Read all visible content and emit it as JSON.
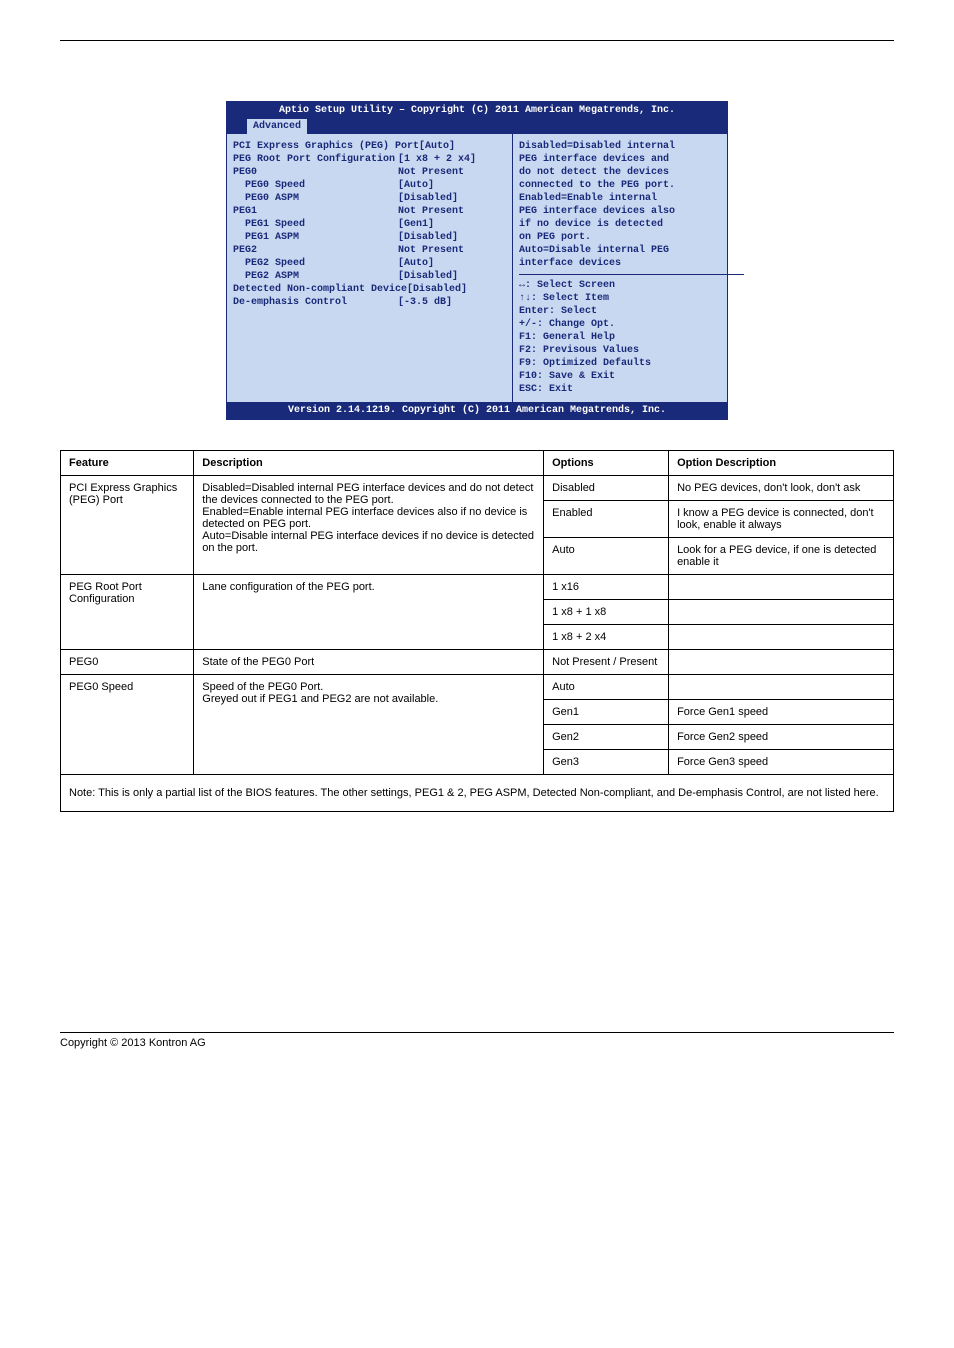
{
  "page_header_rule": true,
  "bios": {
    "title": "Aptio Setup Utility – Copyright (C) 2011 American Megatrends, Inc.",
    "tab": "Advanced",
    "left_rows": [
      {
        "label": "PCI Express Graphics (PEG) Port",
        "value": "[Auto]",
        "indent": 0
      },
      {
        "label": "PEG Root Port Configuration",
        "value": "[1 x8 + 2 x4]",
        "indent": 0
      },
      {
        "label": "PEG0",
        "value": "Not Present",
        "indent": 0
      },
      {
        "label": "PEG0 Speed",
        "value": "[Auto]",
        "indent": 1
      },
      {
        "label": "PEG0 ASPM",
        "value": "[Disabled]",
        "indent": 1
      },
      {
        "label": "PEG1",
        "value": "Not Present",
        "indent": 0
      },
      {
        "label": "PEG1 Speed",
        "value": "[Gen1]",
        "indent": 1
      },
      {
        "label": "PEG1 ASPM",
        "value": "[Disabled]",
        "indent": 1
      },
      {
        "label": "PEG2",
        "value": "Not Present",
        "indent": 0
      },
      {
        "label": "PEG2 Speed",
        "value": "[Auto]",
        "indent": 1
      },
      {
        "label": "PEG2 ASPM",
        "value": "[Disabled]",
        "indent": 1
      },
      {
        "label": "",
        "value": "",
        "indent": 0
      },
      {
        "label": "Detected Non-compliant Device",
        "value": "[Disabled]",
        "indent": 0
      },
      {
        "label": "De-emphasis Control",
        "value": "[-3.5 dB]",
        "indent": 0
      }
    ],
    "help_text": [
      "Disabled=Disabled internal",
      "PEG interface devices and",
      "do not detect the devices",
      "connected to the PEG port.",
      "Enabled=Enable internal",
      "PEG interface devices also",
      "if no device is detected",
      "on PEG port.",
      "Auto=Disable internal PEG",
      "interface devices"
    ],
    "nav_hints": [
      "↔: Select Screen",
      "↑↓: Select Item",
      "Enter: Select",
      "+/-: Change Opt.",
      "F1: General Help",
      "F2: Previsous Values",
      "F9: Optimized Defaults",
      "F10: Save & Exit",
      "ESC: Exit"
    ],
    "footer": "Version 2.14.1219. Copyright (C) 2011 American Megatrends, Inc."
  },
  "table": {
    "headers": [
      "Feature",
      "Description",
      "Options",
      "Option Description"
    ],
    "rows": [
      {
        "feature": "PCI Express Graphics (PEG) Port",
        "description": "Disabled=Disabled internal PEG interface devices and do not detect the devices connected to the PEG port.\nEnabled=Enable internal PEG interface devices also if no device is detected on PEG port.\nAuto=Disable internal PEG interface devices if no device is detected on the port.",
        "opts": [
          {
            "option": "Disabled",
            "odesc": "No PEG devices, don't look, don't ask"
          },
          {
            "option": "Enabled",
            "odesc": "I know a PEG device is connected, don't look, enable it always"
          },
          {
            "option": "Auto",
            "odesc": "Look for a PEG device, if one is detected enable it"
          }
        ]
      },
      {
        "feature": "PEG Root Port Configuration",
        "description": "Lane configuration of the PEG port.",
        "opts": [
          {
            "option": "1 x16",
            "odesc": ""
          },
          {
            "option": "1 x8 + 1 x8",
            "odesc": ""
          },
          {
            "option": "1 x8 + 2 x4",
            "odesc": ""
          }
        ]
      },
      {
        "feature": "PEG0",
        "description": "State of the PEG0 Port",
        "opts": [
          {
            "option": "Not Present / Present",
            "odesc": ""
          }
        ]
      },
      {
        "feature": "PEG0 Speed",
        "description": "Speed of the PEG0 Port.\nGreyed out if PEG1 and PEG2 are not available.",
        "opts": [
          {
            "option": "Auto",
            "odesc": ""
          },
          {
            "option": "Gen1",
            "odesc": "Force Gen1 speed"
          },
          {
            "option": "Gen2",
            "odesc": "Force Gen2 speed"
          },
          {
            "option": "Gen3",
            "odesc": "Force Gen3 speed"
          }
        ]
      }
    ],
    "footer_note": "Note: This is only a partial list of the BIOS features. The other settings, PEG1 & 2, PEG ASPM, Detected Non-compliant, and De-emphasis Control, are not listed here."
  },
  "page_footer": "Copyright © 2013 Kontron AG"
}
